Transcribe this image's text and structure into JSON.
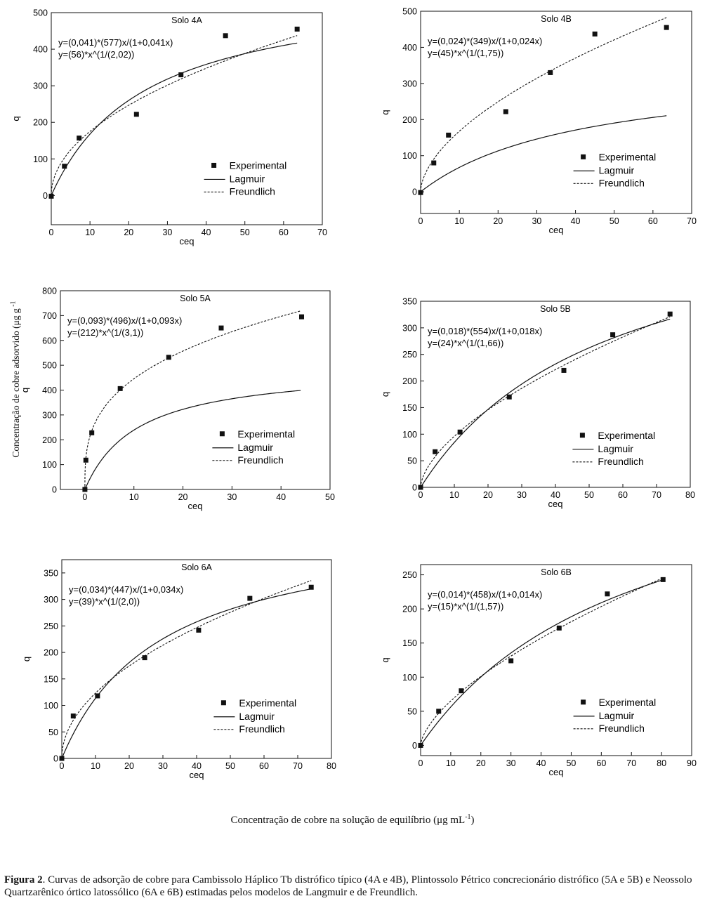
{
  "chart_data": [
    {
      "type": "scatter",
      "title": "Solo 4A",
      "xlabel": "ceq",
      "ylabel": "q",
      "xlim": [
        0,
        70
      ],
      "ylim": [
        -80,
        500
      ],
      "xticks": [
        0,
        10,
        20,
        30,
        40,
        50,
        60,
        70
      ],
      "yticks": [
        0,
        100,
        200,
        300,
        400,
        500
      ],
      "equations": [
        "y=(0,041)*(577)x/(1+0,041x)",
        "y=(56)*x^(1/(2,02))"
      ],
      "legend": [
        "Experimental",
        "Lagmuir",
        "Freundlich"
      ],
      "legend_position": "lower-right",
      "experimental": {
        "x": [
          0,
          3.4,
          7.2,
          22,
          33.5,
          45,
          63.5
        ],
        "y": [
          -2,
          80,
          157,
          222,
          330,
          437,
          455
        ]
      },
      "langmuir": {
        "k": 0.041,
        "qmax": 577,
        "xmax": 63.5
      },
      "freundlich": {
        "kf": 56,
        "n": 2.02,
        "xmax": 63.5
      }
    },
    {
      "type": "scatter",
      "title": "Solo 4B",
      "xlabel": "ceq",
      "ylabel": "q",
      "xlim": [
        0,
        70
      ],
      "ylim": [
        -60,
        500
      ],
      "xticks": [
        0,
        10,
        20,
        30,
        40,
        50,
        60,
        70
      ],
      "yticks": [
        0,
        100,
        200,
        300,
        400,
        500
      ],
      "equations": [
        "y=(0,024)*(349)x/(1+0,024x)",
        "y=(45)*x^(1/(1,75))"
      ],
      "legend": [
        "Experimental",
        "Lagmuir",
        "Freundlich"
      ],
      "legend_position": "lower-right",
      "experimental": {
        "x": [
          0,
          3.4,
          7.2,
          22,
          33.5,
          45,
          63.5
        ],
        "y": [
          -2,
          80,
          157,
          222,
          330,
          437,
          455
        ]
      },
      "langmuir": {
        "k": 0.024,
        "qmax": 349,
        "xmax": 63.5
      },
      "freundlich": {
        "kf": 45,
        "n": 1.75,
        "xmax": 63.5
      }
    },
    {
      "type": "scatter",
      "title": "Solo 5A",
      "xlabel": "ceq",
      "ylabel": "q",
      "xlim": [
        -5,
        50
      ],
      "ylim": [
        0,
        800
      ],
      "xticks": [
        0,
        10,
        20,
        30,
        40,
        50
      ],
      "yticks": [
        0,
        100,
        200,
        300,
        400,
        500,
        600,
        700,
        800
      ],
      "equations": [
        "y=(0,093)*(496)x/(1+0,093x)",
        "y=(212)*x^(1/(3,1))"
      ],
      "legend": [
        "Experimental",
        "Lagmuir",
        "Freundlich"
      ],
      "legend_position": "lower-right",
      "experimental": {
        "x": [
          0,
          0.2,
          1.4,
          7.2,
          17.1,
          27.8,
          44.2
        ],
        "y": [
          0,
          118,
          228,
          406,
          532,
          650,
          695
        ]
      },
      "langmuir": {
        "k": 0.093,
        "qmax": 496,
        "xmax": 44
      },
      "freundlich": {
        "kf": 212,
        "n": 3.1,
        "xmax": 44
      }
    },
    {
      "type": "scatter",
      "title": "Solo 5B",
      "xlabel": "ceq",
      "ylabel": "q",
      "xlim": [
        0,
        80
      ],
      "ylim": [
        0,
        350
      ],
      "xticks": [
        0,
        10,
        20,
        30,
        40,
        50,
        60,
        70,
        80
      ],
      "yticks": [
        0,
        50,
        100,
        150,
        200,
        250,
        300,
        350
      ],
      "equations": [
        "y=(0,018)*(554)x/(1+0,018x)",
        "y=(24)*x^(1/(1,66))"
      ],
      "legend": [
        "Experimental",
        "Lagmuir",
        "Freundlich"
      ],
      "legend_position": "lower-right",
      "experimental": {
        "x": [
          0,
          4.3,
          11.7,
          26.3,
          42.5,
          57,
          74
        ],
        "y": [
          0,
          67,
          104,
          170,
          220,
          287,
          326
        ]
      },
      "langmuir": {
        "k": 0.018,
        "qmax": 554,
        "xmax": 74
      },
      "freundlich": {
        "kf": 24,
        "n": 1.66,
        "xmax": 74
      }
    },
    {
      "type": "scatter",
      "title": "Solo 6A",
      "xlabel": "ceq",
      "ylabel": "q",
      "xlim": [
        0,
        80
      ],
      "ylim": [
        0,
        375
      ],
      "xticks": [
        0,
        10,
        20,
        30,
        40,
        50,
        60,
        70,
        80
      ],
      "yticks": [
        0,
        50,
        100,
        150,
        200,
        250,
        300,
        350
      ],
      "equations": [
        "y=(0,034)*(447)x/(1+0,034x)",
        "y=(39)*x^(1/(2,0))"
      ],
      "legend": [
        "Experimental",
        "Lagmuir",
        "Freundlich"
      ],
      "legend_position": "lower-right",
      "experimental": {
        "x": [
          0,
          3.4,
          10.6,
          24.6,
          40.6,
          55.8,
          74
        ],
        "y": [
          0,
          80,
          118,
          190,
          242,
          302,
          323
        ]
      },
      "langmuir": {
        "k": 0.034,
        "qmax": 447,
        "xmax": 74
      },
      "freundlich": {
        "kf": 39,
        "n": 2.0,
        "xmax": 74
      }
    },
    {
      "type": "scatter",
      "title": "Solo 6B",
      "xlabel": "ceq",
      "ylabel": "q",
      "xlim": [
        0,
        90
      ],
      "ylim": [
        -15,
        265
      ],
      "xticks": [
        0,
        10,
        20,
        30,
        40,
        50,
        60,
        70,
        80,
        90
      ],
      "yticks": [
        0,
        50,
        100,
        150,
        200,
        250
      ],
      "equations": [
        "y=(0,014)*(458)x/(1+0,014x)",
        "y=(15)*x^(1/(1,57))"
      ],
      "legend": [
        "Experimental",
        "Lagmuir",
        "Freundlich"
      ],
      "legend_position": "lower-right",
      "experimental": {
        "x": [
          0,
          6,
          13.5,
          30,
          46,
          62,
          80.5
        ],
        "y": [
          0,
          50,
          80,
          124,
          172,
          222,
          243
        ]
      },
      "langmuir": {
        "k": 0.014,
        "qmax": 458,
        "xmax": 80.5
      },
      "freundlich": {
        "kf": 15,
        "n": 1.57,
        "xmax": 80.5
      }
    }
  ],
  "shared_ylabel": "Concentração de cobre adsorvido (μg g",
  "shared_ylabel_sup": " -1",
  "shared_xlabel": "Concentração de cobre na solução de equilíbrio (μg mL",
  "shared_xlabel_sup": "-1",
  "shared_xlabel_close": ")",
  "caption_label": "Figura 2",
  "caption_text": ". Curvas de adsorção de cobre para Cambissolo Háplico Tb distrófico típico (4A e 4B), Plintossolo Pétrico concrecionário distrófico (5A e 5B) e Neossolo Quartzarênico órtico latossólico (6A e 6B) estimadas pelos modelos de Langmuir e de Freundlich."
}
